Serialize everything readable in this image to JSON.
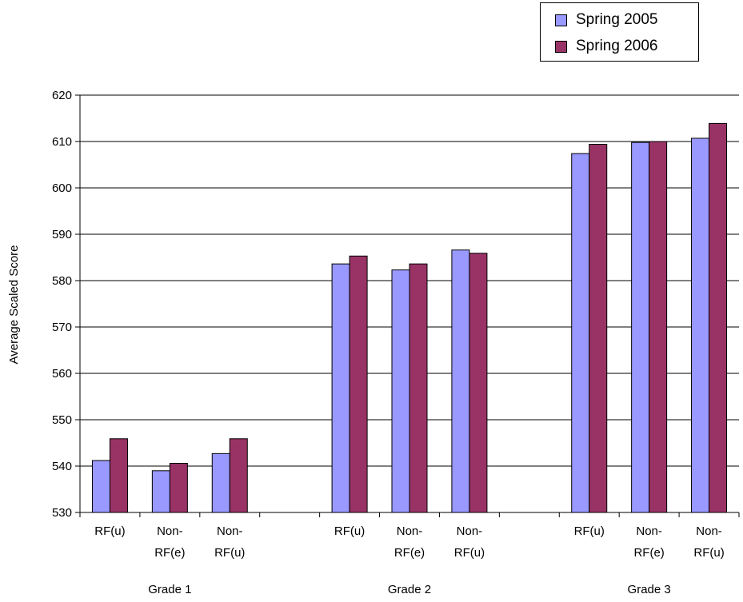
{
  "chart_data": {
    "type": "bar",
    "title": "",
    "ylabel": "Average Scaled Score",
    "xlabel": "",
    "ylim": [
      530,
      620
    ],
    "ytick_step": 10,
    "grid": "horizontal",
    "legend_position": "top-right",
    "groups": [
      {
        "name": "Grade 1",
        "categories": [
          {
            "line1": "RF(u)",
            "line2": ""
          },
          {
            "line1": "Non-",
            "line2": "RF(e)"
          },
          {
            "line1": "Non-",
            "line2": "RF(u)"
          }
        ]
      },
      {
        "name": "Grade 2",
        "categories": [
          {
            "line1": "RF(u)",
            "line2": ""
          },
          {
            "line1": "Non-",
            "line2": "RF(e)"
          },
          {
            "line1": "Non-",
            "line2": "RF(u)"
          }
        ]
      },
      {
        "name": "Grade 3",
        "categories": [
          {
            "line1": "RF(u)",
            "line2": ""
          },
          {
            "line1": "Non-",
            "line2": "RF(e)"
          },
          {
            "line1": "Non-",
            "line2": "RF(u)"
          }
        ]
      }
    ],
    "series": [
      {
        "name": "Spring 2005",
        "color": "#9999ff",
        "values": [
          541.2,
          539.0,
          542.7,
          583.6,
          582.3,
          586.6,
          607.4,
          609.8,
          610.7
        ]
      },
      {
        "name": "Spring 2006",
        "color": "#993366",
        "values": [
          545.9,
          540.6,
          545.9,
          585.3,
          583.6,
          585.9,
          609.4,
          610.0,
          613.9
        ]
      }
    ]
  }
}
